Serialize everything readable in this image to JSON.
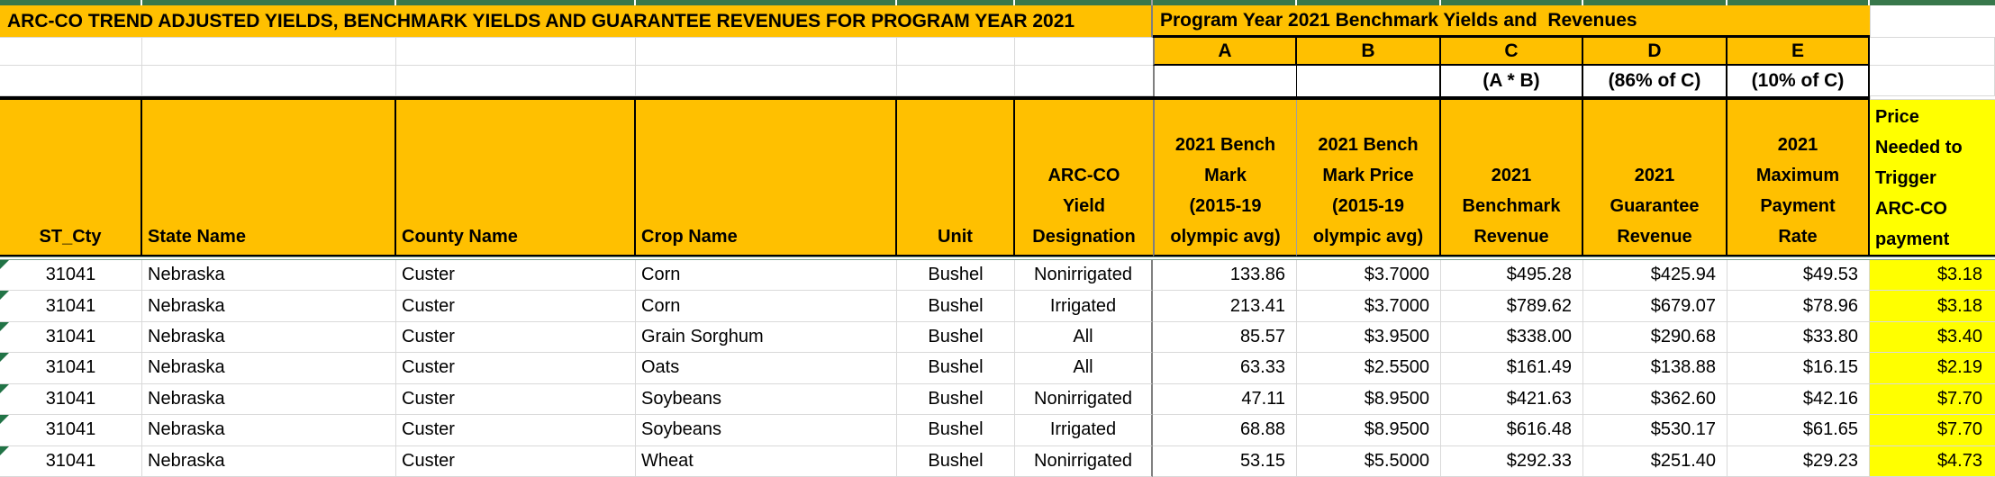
{
  "titles": {
    "main": "ARC-CO TREND ADJUSTED YIELDS, BENCHMARK YIELDS AND GUARANTEE REVENUES FOR PROGRAM YEAR 2021",
    "section": "Program Year 2021 Benchmark Yields and  Revenues"
  },
  "benchmark_letters": [
    "A",
    "B",
    "C",
    "D",
    "E"
  ],
  "formulas": {
    "c": "(A * B)",
    "d": "(86% of C)",
    "e": "(10% of C)"
  },
  "colors": {
    "gold": "#FFC000",
    "yellow": "#FFFF00",
    "top_strip_green": "#38784B",
    "error_triangle_green": "#217346",
    "gridline_gray": "#d9d9d9",
    "column_divider_gray": "#7f7f7f"
  },
  "icons": {
    "cell_error_triangle": "triangle-top-left"
  },
  "table": {
    "headers": [
      "ST_Cty",
      "State Name",
      "County Name",
      "Crop Name",
      "Unit",
      "ARC-CO\nYield\nDesignation",
      "2021 Bench\nMark\n(2015-19\nolympic avg)",
      "2021 Bench\nMark Price\n(2015-19\nolympic avg)",
      "2021\nBenchmark\nRevenue",
      "2021\nGuarantee\nRevenue",
      "2021\nMaximum\nPayment\nRate",
      "Price\nNeeded to\nTrigger\nARC-CO\npayment"
    ],
    "rows": [
      [
        "31041",
        "Nebraska",
        "Custer",
        "Corn",
        "Bushel",
        "Nonirrigated",
        "133.86",
        "$3.7000",
        "$495.28",
        "$425.94",
        "$49.53",
        "$3.18"
      ],
      [
        "31041",
        "Nebraska",
        "Custer",
        "Corn",
        "Bushel",
        "Irrigated",
        "213.41",
        "$3.7000",
        "$789.62",
        "$679.07",
        "$78.96",
        "$3.18"
      ],
      [
        "31041",
        "Nebraska",
        "Custer",
        "Grain Sorghum",
        "Bushel",
        "All",
        "85.57",
        "$3.9500",
        "$338.00",
        "$290.68",
        "$33.80",
        "$3.40"
      ],
      [
        "31041",
        "Nebraska",
        "Custer",
        "Oats",
        "Bushel",
        "All",
        "63.33",
        "$2.5500",
        "$161.49",
        "$138.88",
        "$16.15",
        "$2.19"
      ],
      [
        "31041",
        "Nebraska",
        "Custer",
        "Soybeans",
        "Bushel",
        "Nonirrigated",
        "47.11",
        "$8.9500",
        "$421.63",
        "$362.60",
        "$42.16",
        "$7.70"
      ],
      [
        "31041",
        "Nebraska",
        "Custer",
        "Soybeans",
        "Bushel",
        "Irrigated",
        "68.88",
        "$8.9500",
        "$616.48",
        "$530.17",
        "$61.65",
        "$7.70"
      ],
      [
        "31041",
        "Nebraska",
        "Custer",
        "Wheat",
        "Bushel",
        "Nonirrigated",
        "53.15",
        "$5.5000",
        "$292.33",
        "$251.40",
        "$29.23",
        "$4.73"
      ]
    ]
  }
}
